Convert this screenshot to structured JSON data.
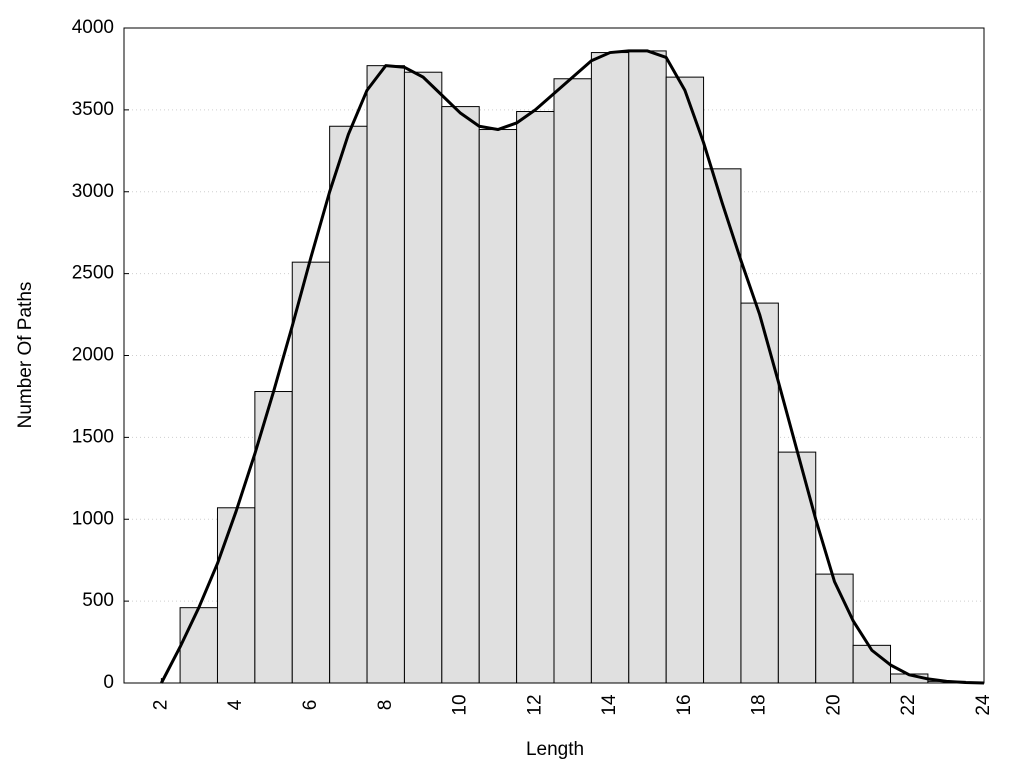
{
  "chart_data": {
    "type": "histogram",
    "xlabel": "Length",
    "ylabel": "Number Of Paths",
    "bins": [
      2.5,
      3.5,
      4.5,
      5.5,
      6.5,
      7.5,
      8.5,
      9.5,
      10.5,
      11.5,
      12.5,
      13.5,
      14.5,
      15.5,
      16.5,
      17.5,
      18.5,
      19.5,
      20.5,
      21.5,
      22.5,
      23.5
    ],
    "values": [
      460,
      1070,
      1780,
      2570,
      3400,
      3770,
      3730,
      3520,
      3380,
      3490,
      3690,
      3850,
      3860,
      3700,
      3140,
      2320,
      1410,
      665,
      230,
      55,
      10
    ],
    "color": "#e0e0e0",
    "edgecolor": "#000000",
    "curve": {
      "type": "line",
      "color": "#000000",
      "x": [
        2,
        2.5,
        3,
        3.5,
        4,
        4.5,
        5,
        5.5,
        6,
        6.5,
        7,
        7.5,
        8,
        8.5,
        9,
        9.5,
        10,
        10.5,
        11,
        11.5,
        12,
        12.5,
        13,
        13.5,
        14,
        14.5,
        15,
        15.5,
        16,
        16.5,
        17,
        17.5,
        18,
        18.5,
        19,
        19.5,
        20,
        20.5,
        21,
        21.5,
        22,
        22.5,
        23,
        23.5,
        24
      ],
      "values": [
        0,
        220,
        460,
        730,
        1050,
        1400,
        1780,
        2180,
        2600,
        3000,
        3350,
        3620,
        3770,
        3760,
        3700,
        3590,
        3480,
        3400,
        3380,
        3420,
        3500,
        3600,
        3700,
        3800,
        3850,
        3860,
        3860,
        3820,
        3620,
        3300,
        2930,
        2580,
        2250,
        1840,
        1420,
        1000,
        620,
        380,
        200,
        110,
        50,
        25,
        10,
        3,
        0
      ]
    },
    "xlim": [
      1,
      24
    ],
    "ylim": [
      0,
      4000
    ],
    "xticks": [
      2,
      4,
      6,
      8,
      10,
      12,
      14,
      16,
      18,
      20,
      22,
      24
    ],
    "yticks": [
      0,
      500,
      1000,
      1500,
      2000,
      2500,
      3000,
      3500,
      4000
    ],
    "grid": true
  }
}
